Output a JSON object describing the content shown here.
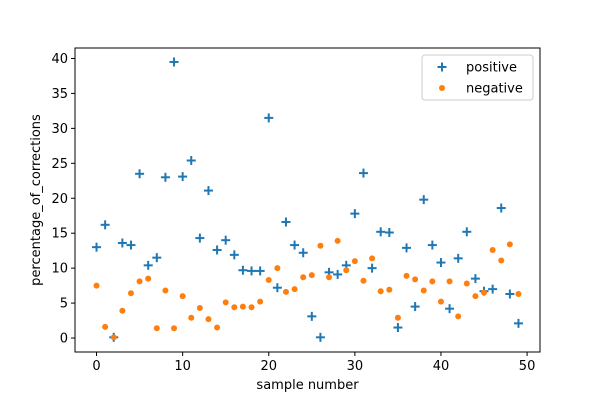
{
  "chart_data": {
    "type": "scatter",
    "xlabel": "sample number",
    "ylabel": "percentage_of_corrections",
    "xlim": [
      -2.5,
      51.5
    ],
    "ylim": [
      -2,
      41.5
    ],
    "x_ticks": [
      0,
      10,
      20,
      30,
      40,
      50
    ],
    "y_ticks": [
      0,
      5,
      10,
      15,
      20,
      25,
      30,
      35,
      40
    ],
    "legend_position": "top-right",
    "grid": false,
    "series": [
      {
        "name": "positive",
        "marker": "plus",
        "color": "#1f77b4",
        "x": [
          0,
          1,
          2,
          3,
          4,
          5,
          6,
          7,
          8,
          9,
          10,
          11,
          12,
          13,
          14,
          15,
          16,
          17,
          18,
          19,
          20,
          21,
          22,
          23,
          24,
          25,
          26,
          27,
          28,
          29,
          30,
          31,
          32,
          33,
          34,
          35,
          36,
          37,
          38,
          39,
          40,
          41,
          42,
          43,
          44,
          45,
          46,
          47,
          48,
          49
        ],
        "y": [
          13.0,
          16.2,
          0.1,
          13.6,
          13.3,
          23.5,
          10.4,
          11.5,
          23.0,
          39.5,
          23.1,
          25.4,
          14.3,
          21.1,
          12.6,
          14.0,
          11.9,
          9.7,
          9.6,
          9.6,
          31.5,
          7.2,
          16.6,
          13.3,
          12.2,
          3.1,
          0.1,
          9.4,
          9.1,
          10.4,
          17.8,
          23.6,
          10.0,
          15.2,
          15.1,
          1.5,
          12.9,
          4.5,
          19.8,
          13.3,
          10.8,
          4.2,
          11.4,
          15.2,
          8.5,
          6.7,
          7.0,
          18.6,
          6.3,
          2.1
        ]
      },
      {
        "name": "negative",
        "marker": "circle",
        "color": "#ff7f0e",
        "x": [
          0,
          1,
          2,
          3,
          4,
          5,
          6,
          7,
          8,
          9,
          10,
          11,
          12,
          13,
          14,
          15,
          16,
          17,
          18,
          19,
          20,
          21,
          22,
          23,
          24,
          25,
          26,
          27,
          28,
          29,
          30,
          31,
          32,
          33,
          34,
          35,
          36,
          37,
          38,
          39,
          40,
          41,
          42,
          43,
          44,
          45,
          46,
          47,
          48,
          49
        ],
        "y": [
          7.5,
          1.6,
          0.1,
          3.9,
          6.4,
          8.1,
          8.5,
          1.4,
          6.8,
          1.4,
          6.0,
          2.9,
          4.3,
          2.7,
          1.5,
          5.1,
          4.4,
          4.5,
          4.4,
          5.2,
          8.3,
          10.0,
          6.6,
          7.0,
          8.7,
          9.0,
          13.2,
          8.7,
          13.9,
          9.7,
          11.0,
          8.2,
          11.4,
          6.7,
          6.9,
          2.9,
          8.9,
          8.4,
          6.8,
          8.1,
          5.2,
          8.1,
          3.1,
          7.8,
          6.0,
          6.5,
          12.6,
          11.1,
          13.4,
          6.3
        ]
      }
    ]
  }
}
